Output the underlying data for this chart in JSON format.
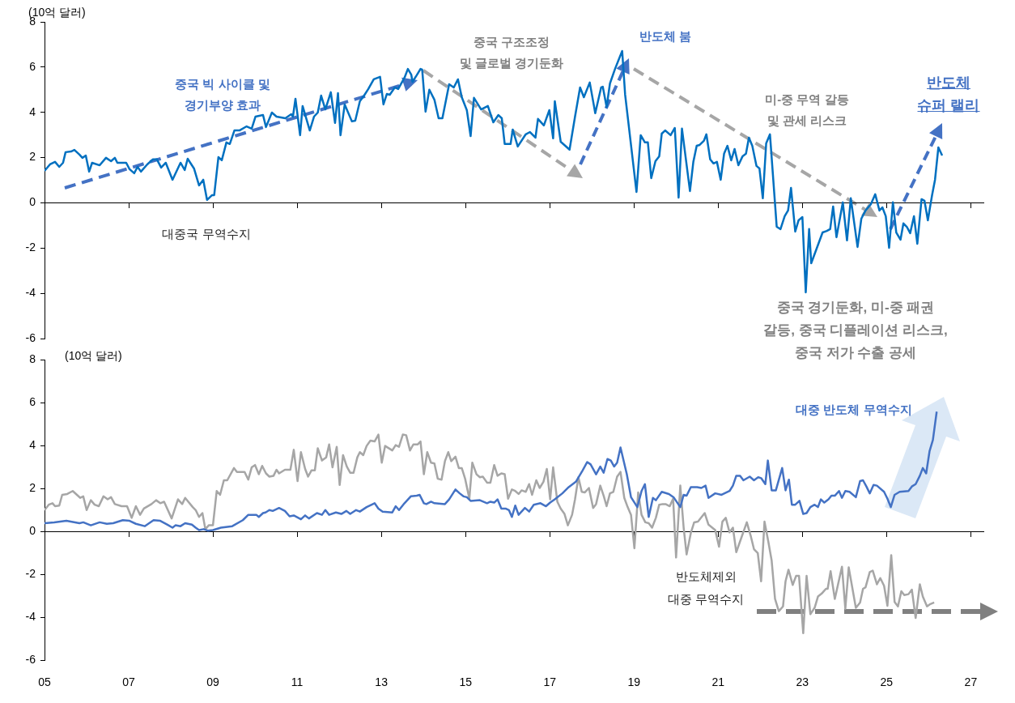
{
  "chart_data": [
    {
      "type": "line",
      "ylabel": "(10억 달러)",
      "xlim": [
        2005,
        2027.3
      ],
      "ylim": [
        -6,
        8
      ],
      "xticks": [
        {
          "value": 2005,
          "label": null
        },
        {
          "value": 2007,
          "label": null
        },
        {
          "value": 2009,
          "label": null
        },
        {
          "value": 2011,
          "label": null
        },
        {
          "value": 2013,
          "label": null
        },
        {
          "value": 2015,
          "label": null
        },
        {
          "value": 2017,
          "label": null
        },
        {
          "value": 2019,
          "label": null
        },
        {
          "value": 2021,
          "label": null
        },
        {
          "value": 2023,
          "label": null
        },
        {
          "value": 2025,
          "label": null
        },
        {
          "value": 2027,
          "label": null
        }
      ],
      "yticks": [
        -6,
        -4,
        -2,
        0,
        2,
        4,
        6,
        8
      ],
      "tick_labels": "y",
      "legend": false,
      "marker": "none",
      "series": [
        {
          "name": "대중국 무역수지",
          "color": "#0070c0",
          "x": [
            2005.0,
            2005.13,
            2005.25,
            2005.35,
            2005.44,
            2005.5,
            2005.63,
            2005.71,
            2005.83,
            2005.9,
            2005.98,
            2006.06,
            2006.13,
            2006.31,
            2006.46,
            2006.58,
            2006.67,
            2006.73,
            2006.94,
            2007.02,
            2007.13,
            2007.21,
            2007.29,
            2007.44,
            2007.57,
            2007.67,
            2007.77,
            2007.88,
            2008.04,
            2008.23,
            2008.33,
            2008.4,
            2008.55,
            2008.67,
            2008.77,
            2008.86,
            2008.98,
            2009.03,
            2009.13,
            2009.21,
            2009.32,
            2009.4,
            2009.51,
            2009.63,
            2009.8,
            2009.92,
            2010.01,
            2010.19,
            2010.26,
            2010.4,
            2010.51,
            2010.72,
            2010.86,
            2010.9,
            2010.96,
            2011.07,
            2011.13,
            2011.3,
            2011.4,
            2011.49,
            2011.57,
            2011.67,
            2011.8,
            2011.9,
            2011.97,
            2012.03,
            2012.13,
            2012.3,
            2012.38,
            2012.49,
            2012.59,
            2012.69,
            2012.82,
            2012.97,
            2013.05,
            2013.13,
            2013.2,
            2013.32,
            2013.4,
            2013.55,
            2013.63,
            2013.71,
            2013.74,
            2013.84,
            2013.93,
            2013.97,
            2014.05,
            2014.14,
            2014.26,
            2014.36,
            2014.45,
            2014.61,
            2014.72,
            2014.82,
            2014.91,
            2015.03,
            2015.12,
            2015.2,
            2015.37,
            2015.53,
            2015.66,
            2015.78,
            2015.86,
            2015.93,
            2016.07,
            2016.12,
            2016.24,
            2016.43,
            2016.53,
            2016.66,
            2016.72,
            2016.86,
            2016.99,
            2017.08,
            2017.12,
            2017.26,
            2017.47,
            2017.6,
            2017.72,
            2017.81,
            2017.95,
            2018.05,
            2018.08,
            2018.22,
            2018.26,
            2018.35,
            2018.43,
            2018.55,
            2018.72,
            2018.79,
            2019.06,
            2019.16,
            2019.26,
            2019.33,
            2019.41,
            2019.51,
            2019.6,
            2019.66,
            2019.74,
            2019.87,
            2019.97,
            2020.06,
            2020.14,
            2020.33,
            2020.41,
            2020.49,
            2020.56,
            2020.66,
            2020.72,
            2020.81,
            2020.89,
            2020.97,
            2021.06,
            2021.14,
            2021.22,
            2021.31,
            2021.39,
            2021.48,
            2021.58,
            2021.66,
            2021.73,
            2021.81,
            2021.91,
            2021.98,
            2022.06,
            2022.14,
            2022.23,
            2022.39,
            2022.48,
            2022.58,
            2022.66,
            2022.73,
            2022.83,
            2022.91,
            2023.0,
            2023.08,
            2023.16,
            2023.21,
            2023.48,
            2023.58,
            2023.66,
            2023.73,
            2023.81,
            2023.96,
            2024.06,
            2024.15,
            2024.31,
            2024.4,
            2024.5,
            2024.63,
            2024.73,
            2024.83,
            2024.9,
            2024.98,
            2025.06,
            2025.15,
            2025.23,
            2025.33,
            2025.4,
            2025.48,
            2025.56,
            2025.65,
            2025.73,
            2025.83,
            2025.9,
            2025.98,
            2026.08,
            2026.15,
            2026.23,
            2026.32
          ],
          "values": [
            1.41,
            1.7,
            1.81,
            1.59,
            1.77,
            2.24,
            2.27,
            2.34,
            2.13,
            1.99,
            2.09,
            1.38,
            1.77,
            1.66,
            1.99,
            1.84,
            1.99,
            1.77,
            1.77,
            1.49,
            1.31,
            1.59,
            1.38,
            1.7,
            1.92,
            1.92,
            1.56,
            1.77,
            1.02,
            1.77,
            1.45,
            1.95,
            1.52,
            0.77,
            1.02,
            0.13,
            0.34,
            0.34,
            2.02,
            1.88,
            2.67,
            2.6,
            3.2,
            3.2,
            3.38,
            3.28,
            3.81,
            3.88,
            3.35,
            3.99,
            3.81,
            3.74,
            3.92,
            3.81,
            4.6,
            2.99,
            4.28,
            3.2,
            3.81,
            3.99,
            4.74,
            4.13,
            4.89,
            3.53,
            4.85,
            2.99,
            4.35,
            3.6,
            3.63,
            4.49,
            4.74,
            5.03,
            5.46,
            5.57,
            4.35,
            4.81,
            4.78,
            5.1,
            5.03,
            5.53,
            5.92,
            5.67,
            5.35,
            5.64,
            5.92,
            5.89,
            4.03,
            5.0,
            4.56,
            3.74,
            3.74,
            5.24,
            5.1,
            5.46,
            4.67,
            4.1,
            2.95,
            4.64,
            4.13,
            4.28,
            3.56,
            3.88,
            3.74,
            2.6,
            2.6,
            3.24,
            2.49,
            3.03,
            3.13,
            2.88,
            3.71,
            3.42,
            4.1,
            2.85,
            4.49,
            2.7,
            2.35,
            3.81,
            5.1,
            4.67,
            5.32,
            4.28,
            3.96,
            5.1,
            5.13,
            4.24,
            5.28,
            5.92,
            6.71,
            4.78,
            0.48,
            2.99,
            2.67,
            2.67,
            1.09,
            1.84,
            2.06,
            3.06,
            3.2,
            2.99,
            3.31,
            0.23,
            3.28,
            0.52,
            1.81,
            2.52,
            2.56,
            2.74,
            3.03,
            1.92,
            1.74,
            1.81,
            1.02,
            2.17,
            2.52,
            1.88,
            2.38,
            1.66,
            2.06,
            2.17,
            2.88,
            2.52,
            1.63,
            1.52,
            0.2,
            2.63,
            3.03,
            -1.06,
            -1.16,
            -0.59,
            -0.34,
            0.66,
            -1.27,
            -0.77,
            -0.63,
            -3.96,
            -1.16,
            -2.67,
            -1.31,
            -1.24,
            -1.16,
            -0.16,
            -1.52,
            0.02,
            -1.66,
            0.2,
            -1.95,
            -0.7,
            -0.34,
            -0.05,
            0.38,
            -0.34,
            -0.2,
            -0.59,
            -1.99,
            0.02,
            -1.31,
            -1.63,
            -0.91,
            -1.06,
            -1.34,
            -0.59,
            -1.81,
            0.16,
            0.09,
            -0.77,
            0.34,
            1.02,
            2.45,
            2.09
          ]
        }
      ],
      "annotations": [
        "중국 빅 사이클 및\n경기부양 효과",
        "중국 구조조정\n및 글로벌 경기둔화",
        "반도체 붐",
        "미-중 무역 갈등\n및 관세 리스크",
        "반도체\n슈퍼 랠리",
        "중국 경기둔화, 미-중 패권\n갈등, 중국 디플레이션 리스크,\n중국 저가 수출 공세"
      ]
    },
    {
      "type": "line",
      "ylabel": "(10억 달러)",
      "xlim": [
        2005,
        2027.3
      ],
      "ylim": [
        -6,
        8
      ],
      "xticks": [
        {
          "value": 2005,
          "label": "05"
        },
        {
          "value": 2007,
          "label": "07"
        },
        {
          "value": 2009,
          "label": "09"
        },
        {
          "value": 2011,
          "label": "11"
        },
        {
          "value": 2013,
          "label": "13"
        },
        {
          "value": 2015,
          "label": "15"
        },
        {
          "value": 2017,
          "label": "17"
        },
        {
          "value": 2019,
          "label": "19"
        },
        {
          "value": 2021,
          "label": "21"
        },
        {
          "value": 2023,
          "label": "23"
        },
        {
          "value": 2025,
          "label": "25"
        },
        {
          "value": 2027,
          "label": "27"
        }
      ],
      "yticks": [
        -6,
        -4,
        -2,
        0,
        2,
        4,
        6,
        8
      ],
      "legend": false,
      "marker": "none",
      "series": [
        {
          "name": "대중 반도체 무역수지",
          "color": "#4472c4",
          "x": [
            2005.0,
            2005.23,
            2005.52,
            2005.83,
            2005.92,
            2006.1,
            2006.31,
            2006.48,
            2006.63,
            2006.86,
            2007.02,
            2007.17,
            2007.38,
            2007.59,
            2007.75,
            2007.92,
            2008.04,
            2008.11,
            2008.23,
            2008.34,
            2008.5,
            2008.59,
            2008.67,
            2008.78,
            2008.88,
            2009.0,
            2009.19,
            2009.46,
            2009.71,
            2009.84,
            2010.03,
            2010.09,
            2010.19,
            2010.25,
            2010.34,
            2010.42,
            2010.57,
            2010.71,
            2010.82,
            2010.92,
            2011.09,
            2011.19,
            2011.28,
            2011.47,
            2011.59,
            2011.67,
            2011.76,
            2011.92,
            2012.05,
            2012.17,
            2012.26,
            2012.4,
            2012.49,
            2012.65,
            2012.84,
            2012.93,
            2013.03,
            2013.26,
            2013.34,
            2013.42,
            2013.55,
            2013.7,
            2013.84,
            2013.91,
            2014.01,
            2014.07,
            2014.18,
            2014.26,
            2014.51,
            2014.61,
            2014.76,
            2014.86,
            2014.95,
            2015.03,
            2015.12,
            2015.34,
            2015.51,
            2015.59,
            2015.68,
            2015.76,
            2015.85,
            2015.95,
            2016.03,
            2016.1,
            2016.18,
            2016.26,
            2016.41,
            2016.51,
            2016.62,
            2016.78,
            2016.91,
            2017.01,
            2017.12,
            2017.3,
            2017.45,
            2017.62,
            2017.78,
            2017.89,
            2017.97,
            2018.1,
            2018.2,
            2018.28,
            2018.37,
            2018.45,
            2018.53,
            2018.6,
            2018.68,
            2018.83,
            2018.93,
            2019.08,
            2019.18,
            2019.26,
            2019.35,
            2019.45,
            2019.52,
            2019.66,
            2019.83,
            2019.94,
            2020.1,
            2020.18,
            2020.25,
            2020.35,
            2020.5,
            2020.6,
            2020.7,
            2020.77,
            2020.93,
            2021.08,
            2021.27,
            2021.35,
            2021.43,
            2021.52,
            2021.6,
            2021.75,
            2021.85,
            2021.95,
            2022.02,
            2022.12,
            2022.18,
            2022.27,
            2022.37,
            2022.52,
            2022.6,
            2022.68,
            2022.75,
            2022.83,
            2022.93,
            2023.02,
            2023.1,
            2023.19,
            2023.29,
            2023.37,
            2023.44,
            2023.52,
            2023.62,
            2023.69,
            2023.77,
            2023.87,
            2023.94,
            2024.02,
            2024.12,
            2024.27,
            2024.37,
            2024.44,
            2024.52,
            2024.6,
            2024.69,
            2024.77,
            2024.94,
            2025.02,
            2025.1,
            2025.19,
            2025.31,
            2025.52,
            2025.6,
            2025.69,
            2025.79,
            2025.86,
            2025.94,
            2026.02,
            2026.1,
            2026.19
          ],
          "values": [
            0.39,
            0.43,
            0.5,
            0.39,
            0.43,
            0.29,
            0.43,
            0.36,
            0.39,
            0.53,
            0.5,
            0.36,
            0.25,
            0.53,
            0.5,
            0.32,
            0.18,
            0.29,
            0.25,
            0.39,
            0.32,
            0.18,
            0.07,
            0.11,
            0.04,
            0.07,
            0.18,
            0.25,
            0.53,
            0.78,
            0.78,
            0.68,
            0.86,
            0.89,
            1.0,
            0.96,
            1.1,
            0.96,
            0.71,
            0.75,
            0.57,
            0.75,
            0.61,
            0.86,
            0.78,
            1.0,
            0.78,
            0.89,
            0.82,
            0.96,
            0.82,
            1.0,
            0.93,
            1.14,
            1.32,
            1.07,
            0.93,
            0.89,
            1.18,
            1.0,
            1.32,
            1.64,
            1.67,
            1.71,
            1.32,
            1.28,
            1.39,
            1.32,
            1.28,
            1.5,
            1.96,
            1.78,
            1.64,
            1.6,
            1.43,
            1.46,
            1.32,
            1.39,
            1.35,
            1.5,
            1.07,
            1.07,
            1.0,
            0.68,
            1.21,
            0.78,
            1.1,
            0.93,
            1.25,
            1.32,
            1.18,
            1.35,
            1.5,
            1.78,
            2.07,
            2.32,
            2.85,
            3.24,
            3.13,
            2.67,
            3.03,
            2.74,
            3.38,
            3.31,
            3.03,
            3.21,
            3.92,
            2.67,
            1.6,
            1.14,
            1.89,
            2.21,
            0.68,
            1.57,
            1.46,
            1.85,
            1.75,
            1.6,
            1.14,
            1.71,
            1.67,
            2.07,
            2.07,
            2.03,
            2.14,
            1.57,
            1.78,
            1.71,
            1.89,
            2.14,
            2.6,
            2.6,
            2.39,
            2.56,
            2.39,
            2.53,
            2.49,
            2.21,
            3.31,
            1.92,
            1.92,
            2.96,
            1.92,
            2.42,
            1.25,
            1.25,
            1.43,
            0.82,
            0.86,
            1.14,
            1.25,
            1.14,
            1.5,
            1.35,
            1.5,
            1.67,
            1.67,
            1.89,
            1.57,
            1.89,
            1.85,
            1.6,
            2.35,
            2.39,
            2.1,
            1.78,
            2.17,
            2.14,
            1.85,
            1.53,
            1.14,
            1.71,
            1.85,
            1.89,
            2.1,
            2.21,
            2.6,
            2.96,
            2.71,
            3.74,
            4.27,
            5.59
          ]
        },
        {
          "name": "반도체제외\n대중 무역수지",
          "color": "#a6a6a6",
          "x": [
            2005.0,
            2005.1,
            2005.19,
            2005.25,
            2005.35,
            2005.42,
            2005.54,
            2005.67,
            2005.77,
            2005.85,
            2005.92,
            2006.0,
            2006.1,
            2006.19,
            2006.29,
            2006.4,
            2006.5,
            2006.58,
            2006.67,
            2006.83,
            2006.96,
            2007.07,
            2007.17,
            2007.27,
            2007.36,
            2007.54,
            2007.65,
            2007.75,
            2007.84,
            2008.02,
            2008.17,
            2008.27,
            2008.34,
            2008.52,
            2008.59,
            2008.67,
            2008.75,
            2008.82,
            2008.9,
            2009.0,
            2009.09,
            2009.17,
            2009.26,
            2009.34,
            2009.5,
            2009.57,
            2009.75,
            2009.84,
            2009.92,
            2010.0,
            2010.09,
            2010.17,
            2010.26,
            2010.34,
            2010.44,
            2010.51,
            2010.57,
            2010.71,
            2010.84,
            2010.92,
            2011.01,
            2011.09,
            2011.19,
            2011.26,
            2011.34,
            2011.42,
            2011.49,
            2011.59,
            2011.69,
            2011.76,
            2011.84,
            2011.94,
            2012.01,
            2012.09,
            2012.18,
            2012.26,
            2012.34,
            2012.43,
            2012.49,
            2012.57,
            2012.65,
            2012.74,
            2012.84,
            2012.93,
            2013.01,
            2013.09,
            2013.26,
            2013.34,
            2013.42,
            2013.51,
            2013.59,
            2013.68,
            2013.76,
            2013.86,
            2013.93,
            2014.01,
            2014.09,
            2014.18,
            2014.26,
            2014.34,
            2014.43,
            2014.51,
            2014.59,
            2014.66,
            2014.76,
            2014.84,
            2014.91,
            2014.99,
            2015.09,
            2015.16,
            2015.26,
            2015.34,
            2015.41,
            2015.51,
            2015.59,
            2015.68,
            2015.76,
            2015.85,
            2015.93,
            2016.01,
            2016.1,
            2016.18,
            2016.26,
            2016.33,
            2016.43,
            2016.51,
            2016.58,
            2016.68,
            2016.76,
            2016.85,
            2016.93,
            2017.01,
            2017.08,
            2017.18,
            2017.26,
            2017.35,
            2017.43,
            2017.53,
            2017.6,
            2017.68,
            2017.76,
            2017.83,
            2017.93,
            2018.03,
            2018.1,
            2018.2,
            2018.28,
            2018.35,
            2018.43,
            2018.51,
            2018.6,
            2018.68,
            2018.77,
            2018.85,
            2018.93,
            2019.01,
            2019.1,
            2019.18,
            2019.27,
            2019.35,
            2019.43,
            2019.52,
            2019.6,
            2019.68,
            2019.75,
            2019.85,
            2019.93,
            2020.0,
            2020.1,
            2020.18,
            2020.25,
            2020.35,
            2020.43,
            2020.52,
            2020.68,
            2020.77,
            2020.93,
            2021.02,
            2021.1,
            2021.18,
            2021.27,
            2021.35,
            2021.43,
            2021.68,
            2021.77,
            2021.85,
            2021.94,
            2022.02,
            2022.1,
            2022.19,
            2022.27,
            2022.35,
            2022.44,
            2022.54,
            2022.6,
            2022.67,
            2022.77,
            2022.85,
            2022.92,
            2023.02,
            2023.1,
            2023.19,
            2023.29,
            2023.37,
            2023.46,
            2023.56,
            2023.6,
            2023.67,
            2023.77,
            2023.94,
            2024.02,
            2024.1,
            2024.27,
            2024.37,
            2024.44,
            2024.5,
            2024.6,
            2024.67,
            2024.77,
            2024.85,
            2024.94,
            2025.02,
            2025.11,
            2025.19,
            2025.27,
            2025.35,
            2025.42,
            2025.52,
            2025.6,
            2025.69,
            2025.79,
            2025.86,
            2025.96,
            2026.04,
            2026.13
          ],
          "values": [
            1.0,
            1.25,
            1.32,
            1.18,
            1.21,
            1.71,
            1.75,
            1.89,
            1.71,
            1.57,
            1.64,
            1.0,
            1.46,
            1.25,
            1.18,
            1.64,
            1.5,
            1.6,
            1.28,
            1.18,
            1.18,
            0.64,
            1.18,
            0.78,
            1.07,
            1.28,
            1.46,
            1.32,
            1.39,
            0.61,
            1.5,
            1.28,
            1.57,
            1.14,
            1.0,
            0.68,
            0.86,
            0.11,
            0.29,
            0.29,
            1.89,
            1.71,
            2.39,
            2.39,
            2.96,
            2.78,
            2.78,
            2.42,
            2.99,
            3.1,
            2.67,
            3.06,
            2.71,
            2.56,
            2.6,
            2.88,
            2.71,
            2.88,
            2.88,
            3.81,
            2.35,
            3.7,
            2.92,
            2.56,
            2.85,
            2.85,
            3.88,
            3.31,
            3.46,
            4.06,
            2.99,
            3.95,
            2.17,
            3.56,
            3.03,
            2.74,
            2.74,
            3.46,
            3.7,
            3.56,
            3.99,
            4.24,
            4.2,
            4.52,
            3.21,
            3.99,
            3.78,
            4.03,
            3.95,
            4.52,
            4.49,
            3.78,
            4.06,
            4.06,
            4.2,
            2.67,
            3.7,
            3.21,
            3.17,
            2.46,
            2.42,
            3.28,
            3.7,
            3.28,
            3.49,
            2.96,
            2.96,
            2.46,
            1.53,
            3.21,
            2.67,
            2.53,
            2.56,
            2.28,
            2.28,
            3.1,
            2.6,
            2.71,
            2.67,
            1.53,
            1.96,
            1.89,
            1.75,
            1.92,
            1.85,
            2.21,
            1.71,
            2.39,
            2.03,
            2.32,
            2.92,
            1.5,
            2.99,
            1.39,
            1.07,
            0.82,
            0.29,
            0.78,
            1.5,
            2.53,
            1.85,
            1.82,
            2.03,
            1.1,
            1.28,
            2.14,
            1.67,
            1.18,
            1.78,
            1.85,
            2.56,
            2.78,
            1.57,
            1.14,
            0.78,
            -0.78,
            1.82,
            0.78,
            0.43,
            0.39,
            0.18,
            0.64,
            1.25,
            1.28,
            1.28,
            1.18,
            1.53,
            -1.21,
            2.14,
            0.18,
            -1.07,
            -0.07,
            0.43,
            0.46,
            0.86,
            0.32,
            0.07,
            -0.71,
            0.46,
            0.64,
            -0.04,
            0.18,
            -0.96,
            0.43,
            -0.18,
            -0.82,
            -1.0,
            -2.32,
            0.46,
            -0.46,
            -1.35,
            -3.14,
            -3.71,
            -3.49,
            -2.32,
            -1.78,
            -2.49,
            -2.07,
            -2.07,
            -4.74,
            -2.07,
            -3.85,
            -3.56,
            -3.03,
            -2.89,
            -2.67,
            -2.67,
            -1.85,
            -3.14,
            -1.64,
            -3.6,
            -1.67,
            -3.56,
            -3.31,
            -2.67,
            -2.6,
            -1.89,
            -1.82,
            -2.46,
            -2.17,
            -2.53,
            -3.46,
            -1.1,
            -3.28,
            -3.49,
            -2.78,
            -2.96,
            -2.92,
            -2.71,
            -4.03,
            -2.46,
            -3.03,
            -3.49,
            -3.38,
            -3.31
          ]
        }
      ]
    }
  ]
}
